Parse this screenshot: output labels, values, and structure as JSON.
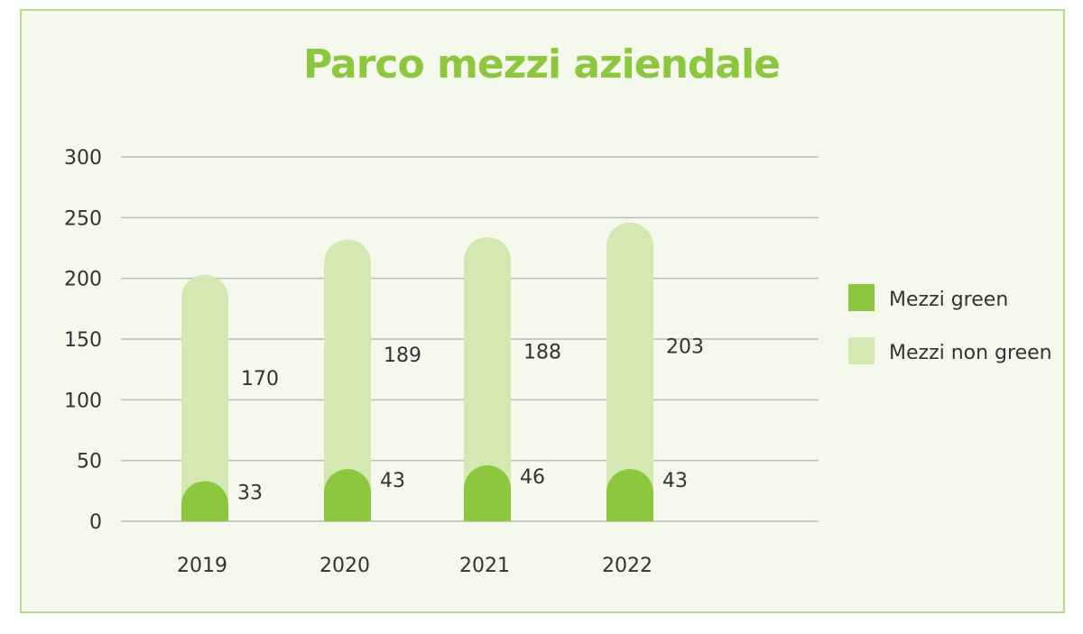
{
  "chart_data": {
    "type": "bar",
    "title": "Parco mezzi aziendale",
    "xlabel": "",
    "ylabel": "",
    "categories": [
      "2019",
      "2020",
      "2021",
      "2022"
    ],
    "series": [
      {
        "name": "Mezzi green",
        "values": [
          33,
          43,
          46,
          43
        ],
        "color": "#8dc63f"
      },
      {
        "name": "Mezzi non green",
        "values": [
          170,
          189,
          188,
          203
        ],
        "color": "#d4e8b4"
      }
    ],
    "ylim": [
      0,
      300
    ],
    "yticks": [
      "0",
      "50",
      "100",
      "150",
      "200",
      "250",
      "300"
    ],
    "grid": true,
    "legend_position": "right"
  }
}
